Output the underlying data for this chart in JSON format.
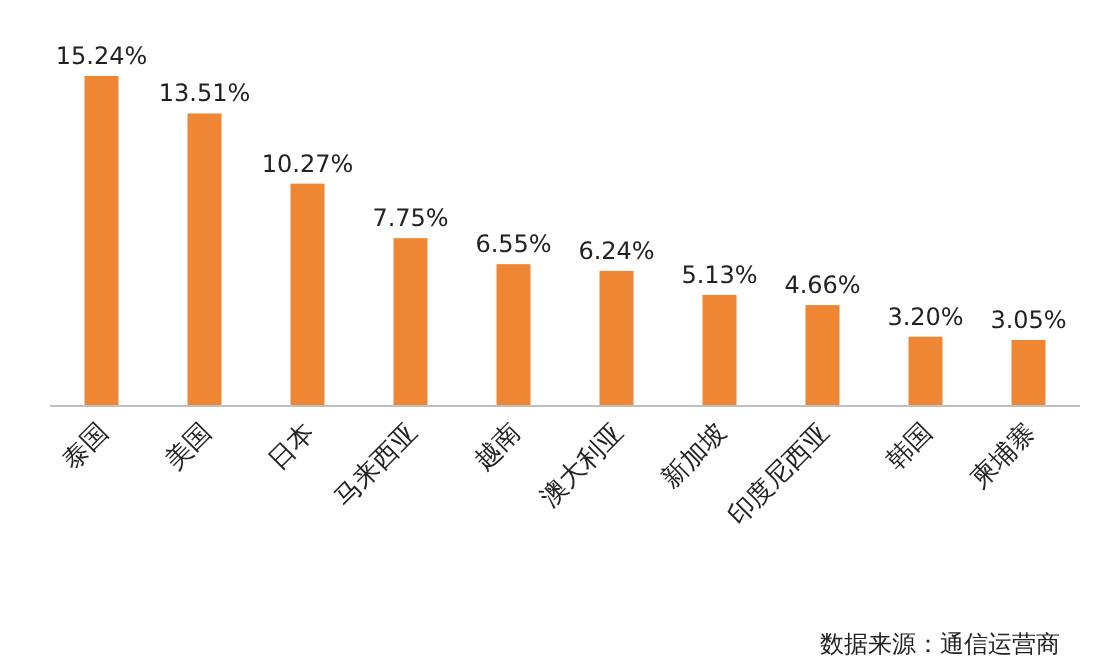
{
  "chart_data": {
    "type": "bar",
    "categories": [
      "泰国",
      "美国",
      "日本",
      "马来西亚",
      "越南",
      "澳大利亚",
      "新加坡",
      "印度尼西亚",
      "韩国",
      "柬埔寨"
    ],
    "values": [
      15.24,
      13.51,
      10.27,
      7.75,
      6.55,
      6.24,
      5.13,
      4.66,
      3.2,
      3.05
    ],
    "value_labels": [
      "15.24%",
      "13.51%",
      "10.27%",
      "7.75%",
      "6.55%",
      "6.24%",
      "5.13%",
      "4.66%",
      "3.20%",
      "3.05%"
    ],
    "color": "#ef8633",
    "annotations": [
      "数据来源：通信运营商"
    ]
  }
}
